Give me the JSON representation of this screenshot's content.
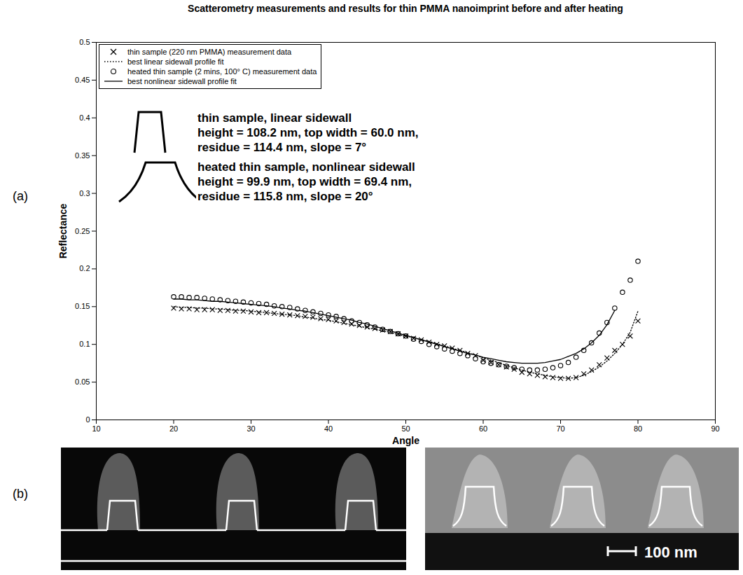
{
  "chart_data": {
    "type": "line",
    "title": "Scatterometry measurements and results for thin PMMA nanoimprint before and after heating",
    "panel_label": "(a)",
    "x_label": "Angle",
    "y_label": "Reflectance",
    "x": [
      20,
      21,
      22,
      23,
      24,
      25,
      26,
      27,
      28,
      29,
      30,
      31,
      32,
      33,
      34,
      35,
      36,
      37,
      38,
      39,
      40,
      41,
      42,
      43,
      44,
      45,
      46,
      47,
      48,
      49,
      50,
      51,
      52,
      53,
      54,
      55,
      56,
      57,
      58,
      59,
      60,
      61,
      62,
      63,
      64,
      65,
      66,
      67,
      68,
      69,
      70,
      71,
      72,
      73,
      74,
      75,
      76,
      77,
      78,
      79,
      80
    ],
    "series": [
      {
        "name": "thin sample (220 nm PMMA) measurement data",
        "type": "scatter",
        "marker": "x",
        "color": "#000000",
        "values": [
          0.148,
          0.147,
          0.147,
          0.146,
          0.146,
          0.146,
          0.145,
          0.145,
          0.144,
          0.144,
          0.143,
          0.142,
          0.142,
          0.141,
          0.14,
          0.139,
          0.138,
          0.137,
          0.136,
          0.134,
          0.133,
          0.131,
          0.129,
          0.127,
          0.125,
          0.123,
          0.121,
          0.119,
          0.117,
          0.114,
          0.111,
          0.108,
          0.106,
          0.103,
          0.1,
          0.098,
          0.095,
          0.092,
          0.088,
          0.085,
          0.079,
          0.076,
          0.073,
          0.07,
          0.067,
          0.063,
          0.061,
          0.059,
          0.057,
          0.056,
          0.055,
          0.055,
          0.056,
          0.061,
          0.066,
          0.073,
          0.082,
          0.092,
          0.1,
          0.111,
          0.131
        ]
      },
      {
        "name": "best linear sidewall profile fit",
        "type": "line",
        "line_style": "dotted",
        "color": "#000000",
        "values": [
          0.15,
          0.149,
          0.149,
          0.148,
          0.148,
          0.147,
          0.147,
          0.146,
          0.145,
          0.145,
          0.144,
          0.143,
          0.142,
          0.141,
          0.14,
          0.139,
          0.138,
          0.136,
          0.135,
          0.133,
          0.132,
          0.13,
          0.128,
          0.126,
          0.124,
          0.122,
          0.12,
          0.118,
          0.116,
          0.113,
          0.111,
          0.109,
          0.106,
          0.104,
          0.101,
          0.098,
          0.095,
          0.092,
          0.089,
          0.086,
          0.082,
          0.079,
          0.076,
          0.072,
          0.069,
          0.066,
          0.063,
          0.061,
          0.059,
          0.057,
          0.056,
          0.055,
          0.056,
          0.059,
          0.064,
          0.07,
          0.078,
          0.088,
          0.1,
          0.116,
          0.144
        ]
      },
      {
        "name": "heated thin sample (2 mins, 100° C) measurement data",
        "type": "scatter",
        "marker": "o",
        "color": "#000000",
        "values": [
          0.163,
          0.163,
          0.162,
          0.162,
          0.161,
          0.16,
          0.159,
          0.158,
          0.157,
          0.156,
          0.155,
          0.154,
          0.153,
          0.151,
          0.15,
          0.149,
          0.147,
          0.145,
          0.143,
          0.141,
          0.139,
          0.137,
          0.134,
          0.131,
          0.129,
          0.126,
          0.123,
          0.12,
          0.117,
          0.114,
          0.111,
          0.107,
          0.104,
          0.1,
          0.097,
          0.094,
          0.091,
          0.088,
          0.085,
          0.081,
          0.077,
          0.075,
          0.073,
          0.071,
          0.069,
          0.067,
          0.066,
          0.066,
          0.067,
          0.069,
          0.072,
          0.076,
          0.083,
          0.092,
          0.102,
          0.115,
          0.129,
          0.148,
          0.169,
          0.185,
          0.21
        ]
      },
      {
        "name": "best nonlinear sidewall profile fit",
        "type": "line",
        "line_style": "solid",
        "color": "#000000",
        "values": [
          0.16,
          0.16,
          0.159,
          0.159,
          0.158,
          0.157,
          0.157,
          0.156,
          0.155,
          0.154,
          0.153,
          0.152,
          0.151,
          0.15,
          0.148,
          0.147,
          0.145,
          0.144,
          0.142,
          0.14,
          0.138,
          0.136,
          0.134,
          0.132,
          0.129,
          0.127,
          0.124,
          0.121,
          0.118,
          0.115,
          0.112,
          0.109,
          0.106,
          0.103,
          0.1,
          0.097,
          0.094,
          0.091,
          0.088,
          0.086,
          0.083,
          0.081,
          0.079,
          0.077,
          0.076,
          0.075,
          0.075,
          0.075,
          0.076,
          0.078,
          0.08,
          0.084,
          0.088,
          0.094,
          0.102,
          0.112,
          0.126,
          0.145,
          null,
          null,
          null
        ]
      }
    ],
    "xlim": [
      10,
      90
    ],
    "ylim": [
      0,
      0.5
    ],
    "xticks": [
      10,
      20,
      30,
      40,
      50,
      60,
      70,
      80,
      90
    ],
    "yticks": [
      0,
      0.05,
      0.1,
      0.15,
      0.2,
      0.25,
      0.3,
      0.35,
      0.4,
      0.45,
      0.5
    ],
    "legend": "top-left",
    "annotations": [
      {
        "lines": [
          "thin sample, linear sidewall",
          "height = 108.2 nm, top width = 60.0 nm,",
          "residue = 114.4 nm, slope = 7°"
        ]
      },
      {
        "lines": [
          "heated thin sample, nonlinear sidewall",
          "height = 99.9 nm, top width = 69.4 nm,",
          "residue = 115.8 nm, slope = 20°"
        ]
      }
    ]
  },
  "panel_b": {
    "panel_label": "(b)",
    "scale_bar": "100 nm"
  }
}
